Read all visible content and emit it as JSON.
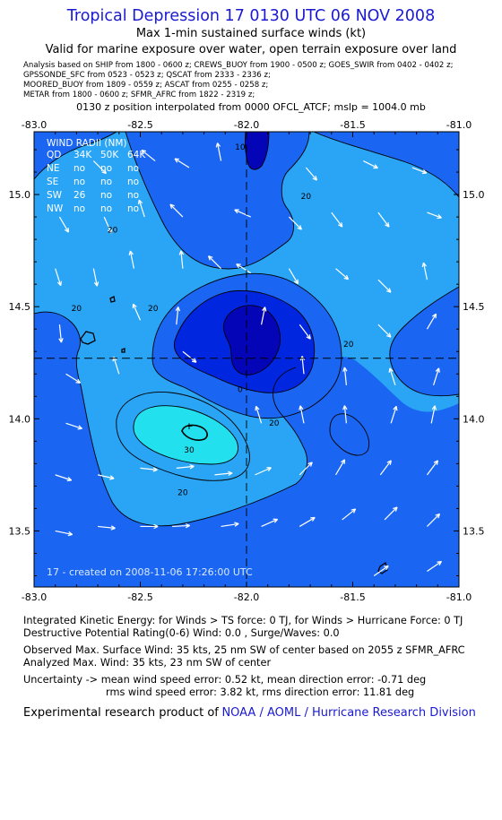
{
  "header": {
    "title": "Tropical Depression 17 0130 UTC 06 NOV 2008",
    "subtitle1": "Max 1-min sustained surface winds (kt)",
    "subtitle2": "Valid for marine exposure over water, open terrain exposure over land"
  },
  "analysis_lines": [
    "Analysis based on   SHIP from 1800 - 0600 z;  CREWS_BUOY from 1900 - 0500 z;  GOES_SWIR from 0402 - 0402 z;",
    "GPSSONDE_SFC from 0523 - 0523 z;  QSCAT from 2333 - 2336 z;",
    "MOORED_BUOY from 1809 - 0559 z;  ASCAT from 0255 - 0258 z;",
    "METAR from 1800 - 0600 z;  SFMR_AFRC from 1822 - 2319 z;"
  ],
  "interp_line": "0130 z position interpolated from 0000 OFCL_ATCF; mslp = 1004.0 mb",
  "chart_data": {
    "type": "contour",
    "xlim": [
      -83.0,
      -81.0
    ],
    "ylim": [
      13.25,
      15.28
    ],
    "x_ticks": [
      "-83.0",
      "-82.5",
      "-82.0",
      "-81.5",
      "-81.0"
    ],
    "y_ticks": [
      "13.5",
      "14.0",
      "14.5",
      "15.0"
    ],
    "x_tick_values": [
      -83.0,
      -82.5,
      -82.0,
      -81.5,
      -81.0
    ],
    "y_tick_values": [
      13.5,
      14.0,
      14.5,
      15.0
    ],
    "center": {
      "lon": -82.0,
      "lat": 14.27
    },
    "max_wind_marker": {
      "lon": -82.27,
      "lat": 13.97
    },
    "contour_levels": [
      10,
      20,
      30
    ],
    "contour_labels": [
      {
        "text": "10",
        "lon": -82.03,
        "lat": 15.2
      },
      {
        "text": "20",
        "lon": -81.72,
        "lat": 14.98
      },
      {
        "text": "20",
        "lon": -82.63,
        "lat": 14.83
      },
      {
        "text": "20",
        "lon": -82.8,
        "lat": 14.48
      },
      {
        "text": "20",
        "lon": -82.44,
        "lat": 14.48
      },
      {
        "text": "20",
        "lon": -81.52,
        "lat": 14.32
      },
      {
        "text": "20",
        "lon": -81.87,
        "lat": 13.97
      },
      {
        "text": "20",
        "lon": -82.3,
        "lat": 13.66
      },
      {
        "text": "30",
        "lon": -82.27,
        "lat": 13.85
      },
      {
        "text": "0",
        "lon": -82.03,
        "lat": 14.12
      }
    ],
    "wind_radii": {
      "title": "WIND RADII (NM)",
      "columns": [
        "QD",
        "34K",
        "50K",
        "64K"
      ],
      "rows": [
        [
          "NE",
          "no",
          "no",
          "no"
        ],
        [
          "SE",
          "no",
          "no",
          "no"
        ],
        [
          "SW",
          "26",
          "no",
          "no"
        ],
        [
          "NW",
          "no",
          "no",
          "no"
        ]
      ]
    },
    "created_note": "17 - created on 2008-11-06 17:26:00 UTC",
    "colors": {
      "background": "#1a66f2",
      "band_20_30": "#2aa4f5",
      "band_30_plus": "#22e0ee",
      "band_below_10": "#0026e0",
      "core_dark": "#0505b8",
      "contour": "#000000",
      "arrow": "#ffffff"
    },
    "wind_vectors": [
      {
        "lon": -82.72,
        "lat": 15.15,
        "u": 0.7,
        "v": -0.7
      },
      {
        "lon": -82.27,
        "lat": 15.12,
        "u": -0.8,
        "v": 0.5
      },
      {
        "lon": -82.43,
        "lat": 15.15,
        "u": -0.75,
        "v": 0.6
      },
      {
        "lon": -81.72,
        "lat": 15.12,
        "u": 0.6,
        "v": -0.7
      },
      {
        "lon": -81.45,
        "lat": 15.15,
        "u": 0.8,
        "v": -0.4
      },
      {
        "lon": -81.22,
        "lat": 15.12,
        "u": 0.8,
        "v": -0.3
      },
      {
        "lon": -82.12,
        "lat": 15.15,
        "u": -0.2,
        "v": 1.0
      },
      {
        "lon": -82.88,
        "lat": 14.9,
        "u": 0.5,
        "v": -0.85
      },
      {
        "lon": -82.67,
        "lat": 14.9,
        "u": 0.4,
        "v": -0.9
      },
      {
        "lon": -82.48,
        "lat": 14.9,
        "u": -0.3,
        "v": 0.95
      },
      {
        "lon": -82.3,
        "lat": 14.9,
        "u": -0.7,
        "v": 0.7
      },
      {
        "lon": -81.98,
        "lat": 14.9,
        "u": -0.9,
        "v": 0.4
      },
      {
        "lon": -81.8,
        "lat": 14.9,
        "u": 0.7,
        "v": -0.7
      },
      {
        "lon": -81.6,
        "lat": 14.92,
        "u": 0.6,
        "v": -0.8
      },
      {
        "lon": -81.38,
        "lat": 14.92,
        "u": 0.6,
        "v": -0.8
      },
      {
        "lon": -81.15,
        "lat": 14.92,
        "u": 0.8,
        "v": -0.3
      },
      {
        "lon": -82.9,
        "lat": 14.67,
        "u": 0.3,
        "v": -0.95
      },
      {
        "lon": -82.72,
        "lat": 14.67,
        "u": 0.2,
        "v": -0.98
      },
      {
        "lon": -82.53,
        "lat": 14.67,
        "u": -0.2,
        "v": 0.98
      },
      {
        "lon": -82.3,
        "lat": 14.67,
        "u": -0.1,
        "v": 0.99
      },
      {
        "lon": -82.12,
        "lat": 14.67,
        "u": -0.7,
        "v": 0.7
      },
      {
        "lon": -81.98,
        "lat": 14.65,
        "u": -0.8,
        "v": 0.5
      },
      {
        "lon": -81.8,
        "lat": 14.67,
        "u": 0.5,
        "v": -0.85
      },
      {
        "lon": -81.58,
        "lat": 14.67,
        "u": 0.7,
        "v": -0.6
      },
      {
        "lon": -81.38,
        "lat": 14.62,
        "u": 0.7,
        "v": -0.7
      },
      {
        "lon": -81.15,
        "lat": 14.62,
        "u": -0.2,
        "v": 0.95
      },
      {
        "lon": -82.88,
        "lat": 14.42,
        "u": 0.1,
        "v": -0.99
      },
      {
        "lon": -82.5,
        "lat": 14.44,
        "u": -0.4,
        "v": 0.9
      },
      {
        "lon": -82.33,
        "lat": 14.42,
        "u": 0.1,
        "v": 0.99
      },
      {
        "lon": -81.93,
        "lat": 14.42,
        "u": 0.2,
        "v": 0.98
      },
      {
        "lon": -81.75,
        "lat": 14.42,
        "u": 0.6,
        "v": -0.8
      },
      {
        "lon": -81.38,
        "lat": 14.42,
        "u": 0.7,
        "v": -0.7
      },
      {
        "lon": -81.15,
        "lat": 14.4,
        "u": 0.5,
        "v": 0.85
      },
      {
        "lon": -82.85,
        "lat": 14.2,
        "u": 0.8,
        "v": -0.5
      },
      {
        "lon": -82.6,
        "lat": 14.2,
        "u": -0.3,
        "v": 0.95
      },
      {
        "lon": -82.3,
        "lat": 14.3,
        "u": 0.75,
        "v": -0.6
      },
      {
        "lon": -81.73,
        "lat": 14.2,
        "u": -0.1,
        "v": 0.99
      },
      {
        "lon": -81.53,
        "lat": 14.15,
        "u": -0.1,
        "v": 0.99
      },
      {
        "lon": -81.3,
        "lat": 14.15,
        "u": -0.3,
        "v": 0.95
      },
      {
        "lon": -81.12,
        "lat": 14.15,
        "u": 0.3,
        "v": 0.95
      },
      {
        "lon": -82.85,
        "lat": 13.98,
        "u": 0.9,
        "v": -0.3
      },
      {
        "lon": -81.93,
        "lat": 13.98,
        "u": -0.3,
        "v": 0.95
      },
      {
        "lon": -81.73,
        "lat": 13.98,
        "u": -0.2,
        "v": 0.98
      },
      {
        "lon": -81.53,
        "lat": 13.98,
        "u": -0.1,
        "v": 0.99
      },
      {
        "lon": -81.32,
        "lat": 13.98,
        "u": 0.3,
        "v": 0.95
      },
      {
        "lon": -81.13,
        "lat": 13.98,
        "u": 0.2,
        "v": 0.98
      },
      {
        "lon": -82.9,
        "lat": 13.75,
        "u": 0.9,
        "v": -0.3
      },
      {
        "lon": -82.7,
        "lat": 13.75,
        "u": 0.9,
        "v": -0.2
      },
      {
        "lon": -82.5,
        "lat": 13.78,
        "u": 0.95,
        "v": -0.1
      },
      {
        "lon": -82.33,
        "lat": 13.78,
        "u": 0.98,
        "v": 0.1
      },
      {
        "lon": -82.15,
        "lat": 13.75,
        "u": 0.98,
        "v": 0.1
      },
      {
        "lon": -81.96,
        "lat": 13.75,
        "u": 0.9,
        "v": 0.4
      },
      {
        "lon": -81.75,
        "lat": 13.75,
        "u": 0.7,
        "v": 0.7
      },
      {
        "lon": -81.58,
        "lat": 13.75,
        "u": 0.5,
        "v": 0.85
      },
      {
        "lon": -81.37,
        "lat": 13.75,
        "u": 0.6,
        "v": 0.8
      },
      {
        "lon": -81.15,
        "lat": 13.75,
        "u": 0.6,
        "v": 0.8
      },
      {
        "lon": -82.9,
        "lat": 13.5,
        "u": 0.95,
        "v": -0.2
      },
      {
        "lon": -82.7,
        "lat": 13.52,
        "u": 0.97,
        "v": -0.1
      },
      {
        "lon": -82.5,
        "lat": 13.52,
        "u": 0.98,
        "v": 0.0
      },
      {
        "lon": -82.35,
        "lat": 13.52,
        "u": 0.98,
        "v": 0.05
      },
      {
        "lon": -82.12,
        "lat": 13.52,
        "u": 0.98,
        "v": 0.15
      },
      {
        "lon": -81.93,
        "lat": 13.52,
        "u": 0.9,
        "v": 0.4
      },
      {
        "lon": -81.75,
        "lat": 13.52,
        "u": 0.85,
        "v": 0.5
      },
      {
        "lon": -81.55,
        "lat": 13.55,
        "u": 0.75,
        "v": 0.6
      },
      {
        "lon": -81.35,
        "lat": 13.55,
        "u": 0.7,
        "v": 0.7
      },
      {
        "lon": -81.15,
        "lat": 13.52,
        "u": 0.7,
        "v": 0.7
      },
      {
        "lon": -81.4,
        "lat": 13.3,
        "u": 0.8,
        "v": 0.55
      },
      {
        "lon": -81.15,
        "lat": 13.32,
        "u": 0.8,
        "v": 0.55
      }
    ]
  },
  "footer": {
    "ike": "Integrated Kinetic Energy:  for Winds > TS force: 0 TJ,  for Winds > Hurricane Force: 0 TJ",
    "dpr": "Destructive Potential Rating(0-6)   Wind: 0.0 , Surge/Waves: 0.0",
    "obs_max": "Observed Max. Surface Wind: 35 kts, 25 nm SW of center based on 2055 z SFMR_AFRC",
    "ana_max": "Analyzed Max. Wind: 35 kts, 23 nm SW of center",
    "unc1": "Uncertainty -> mean wind speed error: 0.52 kt,   mean direction error:  -0.71 deg",
    "unc2": "rms wind speed error: 3.82 kt,   rms direction error: 11.81 deg",
    "credit_prefix": "Experimental research product of",
    "credit_org": "NOAA / AOML / Hurricane Research Division"
  }
}
